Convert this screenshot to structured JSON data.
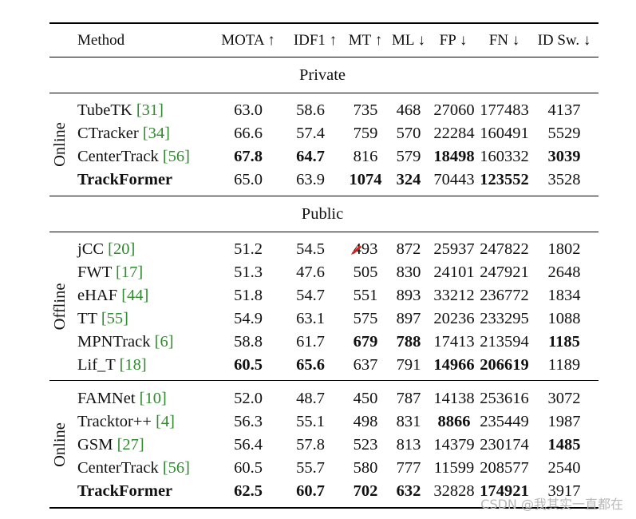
{
  "header": {
    "method": "Method",
    "cols": [
      "MOTA ↑",
      "IDF1 ↑",
      "MT ↑",
      "ML ↓",
      "FP ↓",
      "FN ↓",
      "ID Sw. ↓"
    ]
  },
  "sections": [
    {
      "label": "Private",
      "groups": [
        {
          "label": "Online",
          "rows": [
            {
              "name": "TubeTK ",
              "ref": "[31]",
              "bold": false,
              "vals": [
                "63.0",
                "58.6",
                "735",
                "468",
                "27060",
                "177483",
                "4137"
              ],
              "b": []
            },
            {
              "name": "CTracker ",
              "ref": "[34]",
              "bold": false,
              "vals": [
                "66.6",
                "57.4",
                "759",
                "570",
                "22284",
                "160491",
                "5529"
              ],
              "b": []
            },
            {
              "name": "CenterTrack ",
              "ref": "[56]",
              "bold": false,
              "vals": [
                "67.8",
                "64.7",
                "816",
                "579",
                "18498",
                "160332",
                "3039"
              ],
              "b": [
                0,
                1,
                4,
                6
              ]
            },
            {
              "name": "TrackFormer",
              "ref": "",
              "bold": true,
              "vals": [
                "65.0",
                "63.9",
                "1074",
                "324",
                "70443",
                "123552",
                "3528"
              ],
              "b": [
                2,
                3,
                5
              ]
            }
          ]
        }
      ]
    },
    {
      "label": "Public",
      "groups": [
        {
          "label": "Offline",
          "rows": [
            {
              "name": "jCC ",
              "ref": "[20]",
              "bold": false,
              "vals": [
                "51.2",
                "54.5",
                "493",
                "872",
                "25937",
                "247822",
                "1802"
              ],
              "b": []
            },
            {
              "name": "FWT ",
              "ref": "[17]",
              "bold": false,
              "vals": [
                "51.3",
                "47.6",
                "505",
                "830",
                "24101",
                "247921",
                "2648"
              ],
              "b": []
            },
            {
              "name": "eHAF ",
              "ref": "[44]",
              "bold": false,
              "vals": [
                "51.8",
                "54.7",
                "551",
                "893",
                "33212",
                "236772",
                "1834"
              ],
              "b": []
            },
            {
              "name": "TT ",
              "ref": "[55]",
              "bold": false,
              "vals": [
                "54.9",
                "63.1",
                "575",
                "897",
                "20236",
                "233295",
                "1088"
              ],
              "b": []
            },
            {
              "name": "MPNTrack ",
              "ref": "[6]",
              "bold": false,
              "vals": [
                "58.8",
                "61.7",
                "679",
                "788",
                "17413",
                "213594",
                "1185"
              ],
              "b": [
                2,
                3,
                6
              ]
            },
            {
              "name": "Lif_T ",
              "ref": "[18]",
              "bold": false,
              "vals": [
                "60.5",
                "65.6",
                "637",
                "791",
                "14966",
                "206619",
                "1189"
              ],
              "b": [
                0,
                1,
                4,
                5
              ]
            }
          ]
        },
        {
          "label": "Online",
          "rows": [
            {
              "name": "FAMNet ",
              "ref": "[10]",
              "bold": false,
              "vals": [
                "52.0",
                "48.7",
                "450",
                "787",
                "14138",
                "253616",
                "3072"
              ],
              "b": []
            },
            {
              "name": "Tracktor++ ",
              "ref": "[4]",
              "bold": false,
              "vals": [
                "56.3",
                "55.1",
                "498",
                "831",
                "8866",
                "235449",
                "1987"
              ],
              "b": [
                4
              ]
            },
            {
              "name": "GSM ",
              "ref": "[27]",
              "bold": false,
              "vals": [
                "56.4",
                "57.8",
                "523",
                "813",
                "14379",
                "230174",
                "1485"
              ],
              "b": [
                6
              ]
            },
            {
              "name": "CenterTrack  ",
              "ref": "[56]",
              "bold": false,
              "vals": [
                "60.5",
                "55.7",
                "580",
                "777",
                "11599",
                "208577",
                "2540"
              ],
              "b": []
            },
            {
              "name": "TrackFormer",
              "ref": "",
              "bold": true,
              "vals": [
                "62.5",
                "60.7",
                "702",
                "632",
                "32828",
                "174921",
                "3917"
              ],
              "b": [
                0,
                1,
                2,
                3,
                5
              ]
            }
          ]
        }
      ]
    }
  ],
  "watermark": "CSDN @我其实一直都在",
  "marker_color": "#e0201c"
}
